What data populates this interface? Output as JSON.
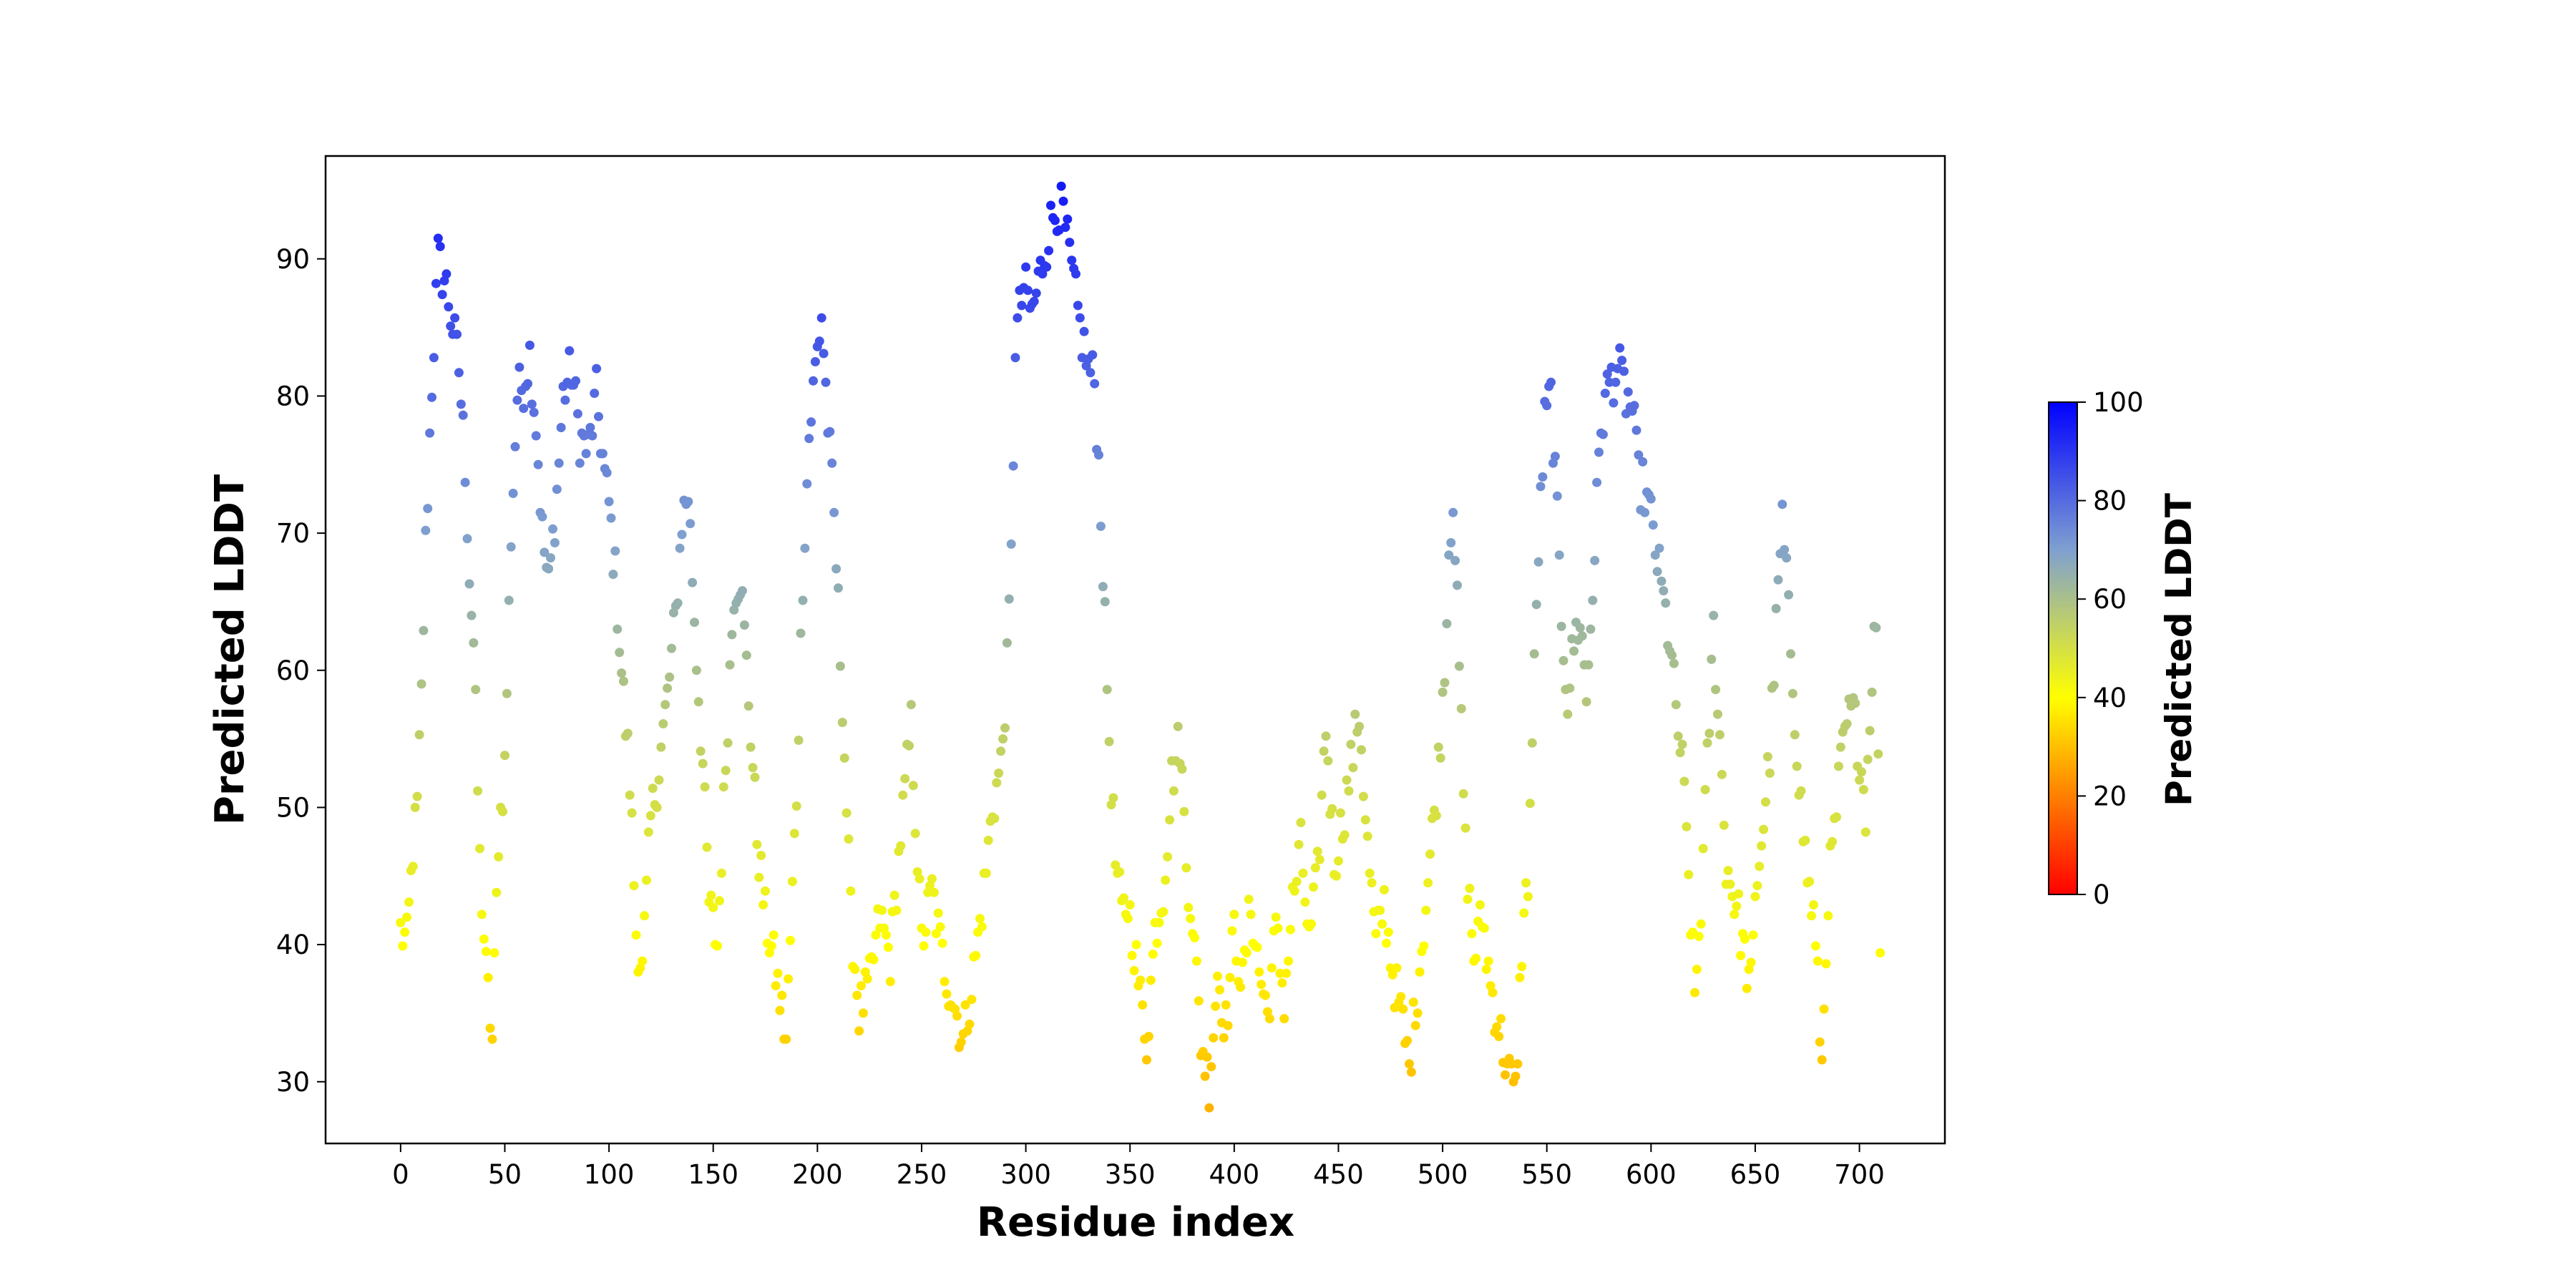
{
  "chart_data": {
    "type": "scatter",
    "title": "",
    "xlabel": "Residue index",
    "ylabel": "Predicted LDDT",
    "xlim": [
      -36,
      741
    ],
    "ylim": [
      25.5,
      97.5
    ],
    "xticks": [
      0,
      50,
      100,
      150,
      200,
      250,
      300,
      350,
      400,
      450,
      500,
      550,
      600,
      650,
      700
    ],
    "yticks": [
      30,
      40,
      50,
      60,
      70,
      80,
      90
    ],
    "grid": false,
    "colormap": {
      "label": "Predicted LDDT",
      "range": [
        0,
        100
      ],
      "ticks": [
        0,
        20,
        40,
        60,
        80,
        100
      ],
      "stops": [
        {
          "value": 0,
          "color": "#ff0000"
        },
        {
          "value": 40,
          "color": "#ffff00"
        },
        {
          "value": 70,
          "color": "#7fa0d0"
        },
        {
          "value": 100,
          "color": "#0000ff"
        }
      ]
    },
    "profile": [
      [
        0,
        41
      ],
      [
        3,
        40
      ],
      [
        6,
        47
      ],
      [
        8,
        50
      ],
      [
        10,
        58
      ],
      [
        12,
        69
      ],
      [
        15,
        81
      ],
      [
        18,
        90
      ],
      [
        22,
        88
      ],
      [
        26,
        84
      ],
      [
        28,
        82
      ],
      [
        31,
        75
      ],
      [
        33,
        67
      ],
      [
        35,
        62
      ],
      [
        38,
        46
      ],
      [
        41,
        38
      ],
      [
        44,
        33
      ],
      [
        47,
        48
      ],
      [
        50,
        53
      ],
      [
        53,
        70
      ],
      [
        56,
        80
      ],
      [
        59,
        81
      ],
      [
        62,
        83
      ],
      [
        65,
        78
      ],
      [
        68,
        70
      ],
      [
        71,
        66
      ],
      [
        75,
        73
      ],
      [
        78,
        80
      ],
      [
        82,
        82
      ],
      [
        86,
        77
      ],
      [
        90,
        76
      ],
      [
        94,
        80
      ],
      [
        98,
        74
      ],
      [
        100,
        72
      ],
      [
        103,
        67
      ],
      [
        106,
        60
      ],
      [
        110,
        52
      ],
      [
        113,
        41
      ],
      [
        116,
        38
      ],
      [
        120,
        49
      ],
      [
        124,
        53
      ],
      [
        128,
        58
      ],
      [
        132,
        64
      ],
      [
        135,
        71
      ],
      [
        138,
        73
      ],
      [
        140,
        67
      ],
      [
        142,
        61
      ],
      [
        145,
        53
      ],
      [
        148,
        43
      ],
      [
        152,
        40
      ],
      [
        155,
        50
      ],
      [
        158,
        60
      ],
      [
        160,
        66
      ],
      [
        163,
        67
      ],
      [
        167,
        58
      ],
      [
        171,
        48
      ],
      [
        175,
        42
      ],
      [
        180,
        38
      ],
      [
        185,
        33
      ],
      [
        190,
        51
      ],
      [
        193,
        67
      ],
      [
        196,
        77
      ],
      [
        199,
        82
      ],
      [
        202,
        86
      ],
      [
        205,
        78
      ],
      [
        208,
        71
      ],
      [
        212,
        58
      ],
      [
        216,
        42
      ],
      [
        220,
        35
      ],
      [
        225,
        37
      ],
      [
        230,
        42
      ],
      [
        235,
        39
      ],
      [
        240,
        48
      ],
      [
        245,
        56
      ],
      [
        250,
        40
      ],
      [
        255,
        44
      ],
      [
        260,
        39
      ],
      [
        265,
        36
      ],
      [
        270,
        33
      ],
      [
        275,
        38
      ],
      [
        280,
        44
      ],
      [
        284,
        50
      ],
      [
        288,
        53
      ],
      [
        291,
        60
      ],
      [
        293,
        68
      ],
      [
        295,
        84
      ],
      [
        299,
        88
      ],
      [
        303,
        86
      ],
      [
        307,
        89
      ],
      [
        311,
        92
      ],
      [
        315,
        94
      ],
      [
        318,
        93
      ],
      [
        322,
        89
      ],
      [
        326,
        85
      ],
      [
        330,
        82
      ],
      [
        333,
        81
      ],
      [
        336,
        72
      ],
      [
        338,
        63
      ],
      [
        340,
        55
      ],
      [
        343,
        46
      ],
      [
        346,
        42
      ],
      [
        349,
        43
      ],
      [
        352,
        40
      ],
      [
        355,
        36
      ],
      [
        358,
        33
      ],
      [
        362,
        41
      ],
      [
        366,
        44
      ],
      [
        370,
        52
      ],
      [
        374,
        55
      ],
      [
        377,
        46
      ],
      [
        380,
        42
      ],
      [
        384,
        33
      ],
      [
        388,
        30
      ],
      [
        392,
        38
      ],
      [
        396,
        34
      ],
      [
        400,
        41
      ],
      [
        404,
        37
      ],
      [
        408,
        43
      ],
      [
        412,
        38
      ],
      [
        416,
        35
      ],
      [
        420,
        41
      ],
      [
        424,
        36
      ],
      [
        428,
        43
      ],
      [
        432,
        47
      ],
      [
        436,
        40
      ],
      [
        440,
        45
      ],
      [
        444,
        56
      ],
      [
        448,
        46
      ],
      [
        452,
        49
      ],
      [
        456,
        53
      ],
      [
        460,
        57
      ],
      [
        464,
        47
      ],
      [
        468,
        40
      ],
      [
        472,
        43
      ],
      [
        476,
        38
      ],
      [
        480,
        35
      ],
      [
        484,
        31
      ],
      [
        488,
        37
      ],
      [
        492,
        43
      ],
      [
        495,
        48
      ],
      [
        498,
        53
      ],
      [
        500,
        58
      ],
      [
        502,
        64
      ],
      [
        503,
        69
      ],
      [
        505,
        73
      ],
      [
        508,
        60
      ],
      [
        511,
        47
      ],
      [
        515,
        39
      ],
      [
        519,
        42
      ],
      [
        523,
        37
      ],
      [
        527,
        34
      ],
      [
        531,
        31
      ],
      [
        535,
        29
      ],
      [
        538,
        40
      ],
      [
        541,
        45
      ],
      [
        543,
        55
      ],
      [
        546,
        69
      ],
      [
        549,
        78
      ],
      [
        552,
        80
      ],
      [
        554,
        74
      ],
      [
        557,
        64
      ],
      [
        560,
        58
      ],
      [
        563,
        62
      ],
      [
        566,
        64
      ],
      [
        569,
        58
      ],
      [
        572,
        66
      ],
      [
        576,
        78
      ],
      [
        580,
        81
      ],
      [
        584,
        82
      ],
      [
        588,
        80
      ],
      [
        591,
        79
      ],
      [
        594,
        74
      ],
      [
        597,
        73
      ],
      [
        600,
        71
      ],
      [
        603,
        68
      ],
      [
        606,
        65
      ],
      [
        609,
        62
      ],
      [
        612,
        57
      ],
      [
        615,
        53
      ],
      [
        618,
        45
      ],
      [
        621,
        36
      ],
      [
        624,
        43
      ],
      [
        627,
        53
      ],
      [
        630,
        63
      ],
      [
        633,
        55
      ],
      [
        636,
        46
      ],
      [
        639,
        44
      ],
      [
        642,
        42
      ],
      [
        645,
        39
      ],
      [
        648,
        37
      ],
      [
        651,
        45
      ],
      [
        654,
        49
      ],
      [
        657,
        54
      ],
      [
        660,
        63
      ],
      [
        663,
        71
      ],
      [
        666,
        64
      ],
      [
        669,
        57
      ],
      [
        672,
        50
      ],
      [
        675,
        45
      ],
      [
        678,
        42
      ],
      [
        680,
        37
      ],
      [
        682,
        31
      ],
      [
        685,
        44
      ],
      [
        688,
        48
      ],
      [
        691,
        53
      ],
      [
        694,
        56
      ],
      [
        697,
        57
      ],
      [
        700,
        54
      ],
      [
        703,
        50
      ],
      [
        706,
        60
      ],
      [
        708,
        64
      ],
      [
        710,
        41
      ]
    ]
  }
}
